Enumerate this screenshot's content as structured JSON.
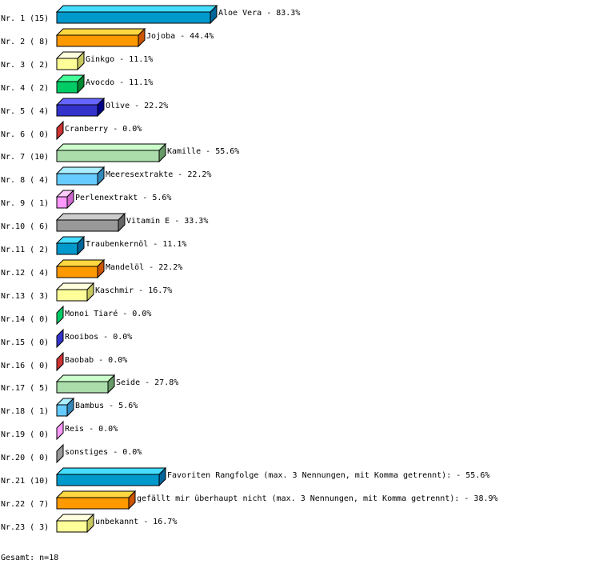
{
  "chart_data": {
    "type": "bar",
    "orientation": "horizontal",
    "style": "3d",
    "xlim": [
      0,
      100
    ],
    "grid": false,
    "categories": [
      "Aloe Vera",
      "Jojoba",
      "Ginkgo",
      "Avocdo",
      "Olive",
      "Cranberry",
      "Kamille",
      "Meeresextrakte",
      "Perlenextrakt",
      "Vitamin E",
      "Traubenkernöl",
      "Mandelöl",
      "Kaschmir",
      "Monoi Tiaré",
      "Rooibos",
      "Baobab",
      "Seide",
      "Bambus",
      "Reis",
      "sonstiges",
      "Favoriten Rangfolge (max. 3 Nennungen, mit Komma getrennt):",
      "gefällt mir überhaupt nicht (max. 3 Nennungen, mit Komma getrennt):",
      "unbekannt"
    ],
    "row_labels": [
      "Nr. 1 (15)",
      "Nr. 2 ( 8)",
      "Nr. 3 ( 2)",
      "Nr. 4 ( 2)",
      "Nr. 5 ( 4)",
      "Nr. 6 ( 0)",
      "Nr. 7 (10)",
      "Nr. 8 ( 4)",
      "Nr. 9 ( 1)",
      "Nr.10 ( 6)",
      "Nr.11 ( 2)",
      "Nr.12 ( 4)",
      "Nr.13 ( 3)",
      "Nr.14 ( 0)",
      "Nr.15 ( 0)",
      "Nr.16 ( 0)",
      "Nr.17 ( 5)",
      "Nr.18 ( 1)",
      "Nr.19 ( 0)",
      "Nr.20 ( 0)",
      "Nr.21 (10)",
      "Nr.22 ( 7)",
      "Nr.23 ( 3)"
    ],
    "counts": [
      15,
      8,
      2,
      2,
      4,
      0,
      10,
      4,
      1,
      6,
      2,
      4,
      3,
      0,
      0,
      0,
      5,
      1,
      0,
      0,
      10,
      7,
      3
    ],
    "values": [
      83.3,
      44.4,
      11.1,
      11.1,
      22.2,
      0.0,
      55.6,
      22.2,
      5.6,
      33.3,
      11.1,
      22.2,
      16.7,
      0.0,
      0.0,
      0.0,
      27.8,
      5.6,
      0.0,
      0.0,
      55.6,
      38.9,
      16.7
    ],
    "value_labels": [
      "83.3%",
      "44.4%",
      "11.1%",
      "11.1%",
      "22.2%",
      "0.0%",
      "55.6%",
      "22.2%",
      "5.6%",
      "33.3%",
      "11.1%",
      "22.2%",
      "16.7%",
      "0.0%",
      "0.0%",
      "0.0%",
      "27.8%",
      "5.6%",
      "0.0%",
      "0.0%",
      "55.6%",
      "38.9%",
      "16.7%"
    ],
    "colors": [
      {
        "front": "#0099cc",
        "top": "#44ddff",
        "side": "#006699"
      },
      {
        "front": "#ff9900",
        "top": "#ffd740",
        "side": "#cc5500"
      },
      {
        "front": "#ffff99",
        "top": "#ffffdd",
        "side": "#c8c860"
      },
      {
        "front": "#00cc66",
        "top": "#44ff99",
        "side": "#008833"
      },
      {
        "front": "#3333cc",
        "top": "#6666ff",
        "side": "#000088"
      },
      {
        "front": "#cc3333",
        "top": "#ff6666",
        "side": "#aa2222"
      },
      {
        "front": "#aaddaa",
        "top": "#ccffcc",
        "side": "#669966"
      },
      {
        "front": "#66ccff",
        "top": "#aaeeff",
        "side": "#3388bb"
      },
      {
        "front": "#ff99ff",
        "top": "#ffccff",
        "side": "#cc66cc"
      },
      {
        "front": "#999999",
        "top": "#cccccc",
        "side": "#666666"
      }
    ]
  },
  "footer": {
    "total": "Gesamt: n=18"
  }
}
